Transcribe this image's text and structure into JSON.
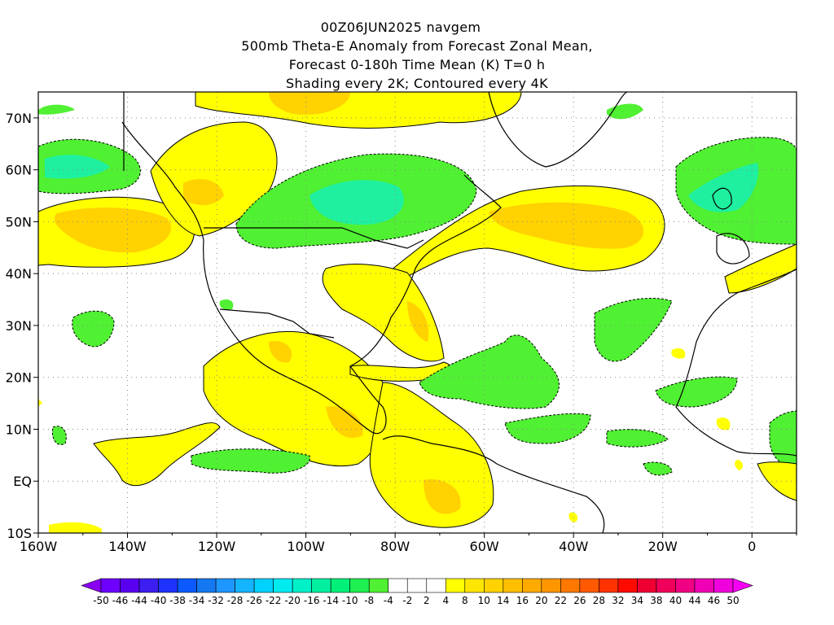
{
  "title": {
    "line1": "00Z06JUN2025  navgem",
    "line2": "500mb Theta-E Anomaly from Forecast Zonal Mean,",
    "line3": "Forecast 0-180h Time Mean (K) T=0 h",
    "line4": "Shading every 2K; Contoured every 4K"
  },
  "map": {
    "lon_ticks": [
      "160W",
      "140W",
      "120W",
      "100W",
      "80W",
      "60W",
      "40W",
      "20W",
      "0"
    ],
    "lat_ticks": [
      "70N",
      "60N",
      "50N",
      "40N",
      "30N",
      "20N",
      "10N",
      "EQ",
      "10S"
    ],
    "lon_range": [
      -160,
      10
    ],
    "lat_range": [
      -10,
      75
    ]
  },
  "colorbar": {
    "labels": [
      "-50",
      "-46",
      "-44",
      "-40",
      "-38",
      "-34",
      "-32",
      "-28",
      "-26",
      "-22",
      "-20",
      "-16",
      "-14",
      "-10",
      "-8",
      "-4",
      "-2",
      "2",
      "4",
      "8",
      "10",
      "14",
      "16",
      "20",
      "22",
      "26",
      "28",
      "32",
      "34",
      "38",
      "40",
      "44",
      "46",
      "50"
    ],
    "colors": [
      "#8a00f0",
      "#6e00ff",
      "#5a00f0",
      "#3c1ef0",
      "#1e32ff",
      "#0a5aff",
      "#1478f0",
      "#1e96ff",
      "#14b4ff",
      "#00d2ff",
      "#00ebf0",
      "#00f0c8",
      "#00f0a0",
      "#00f078",
      "#1ef050",
      "#50f032",
      "#ffffff",
      "#ffffff",
      "#ffffff",
      "#ffff00",
      "#ffe600",
      "#ffd200",
      "#ffbe00",
      "#ffaa00",
      "#ff9600",
      "#ff7800",
      "#ff5a00",
      "#ff3200",
      "#ff0a00",
      "#f00032",
      "#f0005a",
      "#f00082",
      "#f000b4",
      "#f000dc",
      "#f500f5"
    ]
  },
  "colors": {
    "warm1": "#ffff00",
    "warm2": "#ffd200",
    "warm3": "#f7b400",
    "cool1": "#50f032",
    "cool2": "#1ef0a0"
  }
}
